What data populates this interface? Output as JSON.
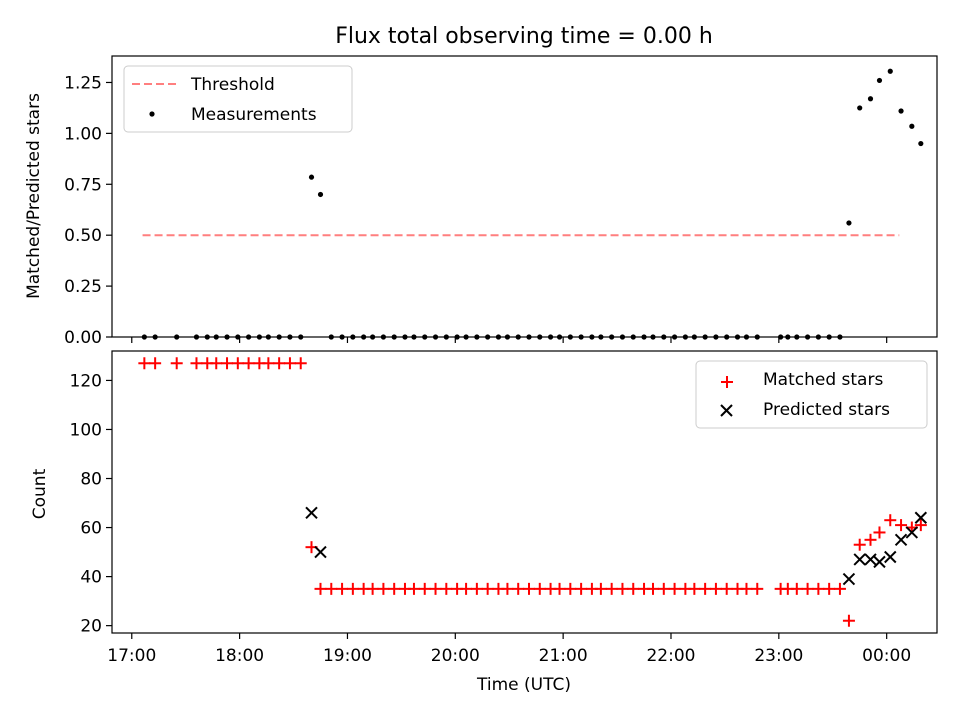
{
  "chart_data": [
    {
      "type": "scatter",
      "title": "Flux total observing time = 0.00 h",
      "xlabel": "",
      "ylabel": "Matched/Predicted stars",
      "ylim": [
        0,
        1.38
      ],
      "yticks": [
        0.0,
        0.25,
        0.5,
        0.75,
        1.0,
        1.25
      ],
      "ytick_labels": [
        "0.00",
        "0.25",
        "0.50",
        "0.75",
        "1.00",
        "1.25"
      ],
      "legend_position": "top-left",
      "threshold": {
        "name": "Threshold",
        "color": "#ff7f7f",
        "style": "dashed",
        "y": 0.5,
        "x_start": "17:06",
        "x_end": "00:07"
      },
      "series": [
        {
          "name": "Measurements",
          "color": "#000000",
          "marker": "dot",
          "points": [
            [
              "17:07",
              0
            ],
            [
              "17:13",
              0
            ],
            [
              "17:25",
              0
            ],
            [
              "17:36",
              0
            ],
            [
              "17:42",
              0
            ],
            [
              "17:47",
              0
            ],
            [
              "17:53",
              0
            ],
            [
              "17:59",
              0
            ],
            [
              "18:05",
              0
            ],
            [
              "18:11",
              0
            ],
            [
              "18:16",
              0
            ],
            [
              "18:22",
              0
            ],
            [
              "18:28",
              0
            ],
            [
              "18:34",
              0
            ],
            [
              "18:40",
              0.785
            ],
            [
              "18:45",
              0.7
            ],
            [
              "18:51",
              0
            ],
            [
              "18:57",
              0
            ],
            [
              "19:03",
              0
            ],
            [
              "19:09",
              0
            ],
            [
              "19:14",
              0
            ],
            [
              "19:20",
              0
            ],
            [
              "19:26",
              0
            ],
            [
              "19:32",
              0
            ],
            [
              "19:37",
              0
            ],
            [
              "19:43",
              0
            ],
            [
              "19:49",
              0
            ],
            [
              "19:55",
              0
            ],
            [
              "20:01",
              0
            ],
            [
              "20:06",
              0
            ],
            [
              "20:12",
              0
            ],
            [
              "20:18",
              0
            ],
            [
              "20:24",
              0
            ],
            [
              "20:29",
              0
            ],
            [
              "20:35",
              0
            ],
            [
              "20:41",
              0
            ],
            [
              "20:47",
              0
            ],
            [
              "20:53",
              0
            ],
            [
              "20:58",
              0
            ],
            [
              "21:04",
              0
            ],
            [
              "21:10",
              0
            ],
            [
              "21:16",
              0
            ],
            [
              "21:21",
              0
            ],
            [
              "21:27",
              0
            ],
            [
              "21:33",
              0
            ],
            [
              "21:39",
              0
            ],
            [
              "21:45",
              0
            ],
            [
              "21:50",
              0
            ],
            [
              "21:56",
              0
            ],
            [
              "22:02",
              0
            ],
            [
              "22:08",
              0
            ],
            [
              "22:13",
              0
            ],
            [
              "22:19",
              0
            ],
            [
              "22:25",
              0
            ],
            [
              "22:31",
              0
            ],
            [
              "22:37",
              0
            ],
            [
              "22:42",
              0
            ],
            [
              "22:48",
              0
            ],
            [
              "23:01",
              0
            ],
            [
              "23:05",
              0
            ],
            [
              "23:10",
              0
            ],
            [
              "23:16",
              0
            ],
            [
              "23:22",
              0
            ],
            [
              "23:28",
              0
            ],
            [
              "23:34",
              0
            ],
            [
              "23:39",
              0.56
            ],
            [
              "23:45",
              1.125
            ],
            [
              "23:51",
              1.17
            ],
            [
              "23:56",
              1.26
            ],
            [
              "00:02",
              1.305
            ],
            [
              "00:08",
              1.11
            ],
            [
              "00:14",
              1.035
            ],
            [
              "00:19",
              0.95
            ]
          ]
        }
      ]
    },
    {
      "type": "scatter",
      "title": "",
      "xlabel": "Time (UTC)",
      "ylabel": "Count",
      "ylim": [
        17,
        132
      ],
      "xlim": [
        "16:49",
        "00:28"
      ],
      "yticks": [
        20,
        40,
        60,
        80,
        100,
        120
      ],
      "ytick_labels": [
        "20",
        "40",
        "60",
        "80",
        "100",
        "120"
      ],
      "xtick_labels": [
        "17:00",
        "18:00",
        "19:00",
        "20:00",
        "21:00",
        "22:00",
        "23:00",
        "00:00"
      ],
      "legend_position": "top-right",
      "series": [
        {
          "name": "Matched stars",
          "color": "#ff0000",
          "marker": "plus",
          "points": [
            [
              "17:07",
              127
            ],
            [
              "17:13",
              127
            ],
            [
              "17:25",
              127
            ],
            [
              "17:36",
              127
            ],
            [
              "17:42",
              127
            ],
            [
              "17:47",
              127
            ],
            [
              "17:53",
              127
            ],
            [
              "17:59",
              127
            ],
            [
              "18:05",
              127
            ],
            [
              "18:11",
              127
            ],
            [
              "18:16",
              127
            ],
            [
              "18:22",
              127
            ],
            [
              "18:28",
              127
            ],
            [
              "18:34",
              127
            ],
            [
              "18:40",
              52
            ],
            [
              "18:45",
              35
            ],
            [
              "18:51",
              35
            ],
            [
              "18:57",
              35
            ],
            [
              "19:03",
              35
            ],
            [
              "19:09",
              35
            ],
            [
              "19:14",
              35
            ],
            [
              "19:20",
              35
            ],
            [
              "19:26",
              35
            ],
            [
              "19:32",
              35
            ],
            [
              "19:37",
              35
            ],
            [
              "19:43",
              35
            ],
            [
              "19:49",
              35
            ],
            [
              "19:55",
              35
            ],
            [
              "20:01",
              35
            ],
            [
              "20:06",
              35
            ],
            [
              "20:12",
              35
            ],
            [
              "20:18",
              35
            ],
            [
              "20:24",
              35
            ],
            [
              "20:29",
              35
            ],
            [
              "20:35",
              35
            ],
            [
              "20:41",
              35
            ],
            [
              "20:47",
              35
            ],
            [
              "20:53",
              35
            ],
            [
              "20:58",
              35
            ],
            [
              "21:04",
              35
            ],
            [
              "21:10",
              35
            ],
            [
              "21:16",
              35
            ],
            [
              "21:21",
              35
            ],
            [
              "21:27",
              35
            ],
            [
              "21:33",
              35
            ],
            [
              "21:39",
              35
            ],
            [
              "21:45",
              35
            ],
            [
              "21:50",
              35
            ],
            [
              "21:56",
              35
            ],
            [
              "22:02",
              35
            ],
            [
              "22:08",
              35
            ],
            [
              "22:13",
              35
            ],
            [
              "22:19",
              35
            ],
            [
              "22:25",
              35
            ],
            [
              "22:31",
              35
            ],
            [
              "22:37",
              35
            ],
            [
              "22:42",
              35
            ],
            [
              "22:48",
              35
            ],
            [
              "23:01",
              35
            ],
            [
              "23:05",
              35
            ],
            [
              "23:10",
              35
            ],
            [
              "23:16",
              35
            ],
            [
              "23:22",
              35
            ],
            [
              "23:28",
              35
            ],
            [
              "23:34",
              35
            ],
            [
              "23:39",
              22
            ],
            [
              "23:45",
              53
            ],
            [
              "23:51",
              55
            ],
            [
              "23:56",
              58
            ],
            [
              "00:02",
              63
            ],
            [
              "00:08",
              61
            ],
            [
              "00:14",
              60
            ],
            [
              "00:19",
              61
            ]
          ]
        },
        {
          "name": "Predicted stars",
          "color": "#000000",
          "marker": "x",
          "points": [
            [
              "18:40",
              66
            ],
            [
              "18:45",
              50
            ],
            [
              "23:39",
              39
            ],
            [
              "23:45",
              47
            ],
            [
              "23:51",
              47
            ],
            [
              "23:56",
              46
            ],
            [
              "00:02",
              48
            ],
            [
              "00:08",
              55
            ],
            [
              "00:14",
              58
            ],
            [
              "00:19",
              64
            ]
          ]
        }
      ]
    }
  ]
}
